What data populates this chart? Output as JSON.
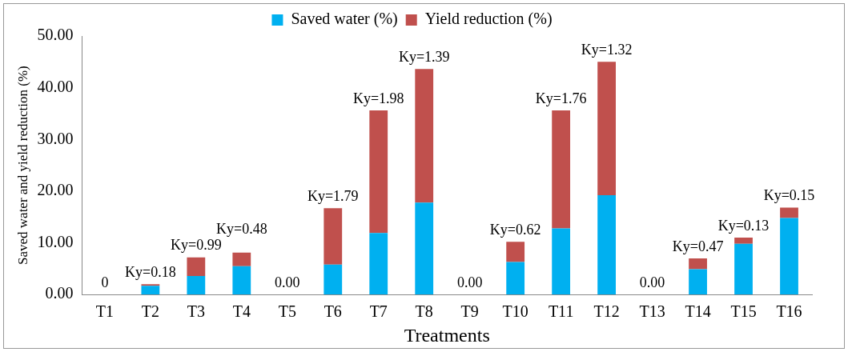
{
  "chart_data": {
    "type": "bar",
    "stacked": true,
    "xlabel": "Treatments",
    "ylabel": "Saved water and yield reduction (%)",
    "categories": [
      "T1",
      "T2",
      "T3",
      "T4",
      "T5",
      "T6",
      "T7",
      "T8",
      "T9",
      "T10",
      "T11",
      "T12",
      "T13",
      "T14",
      "T15",
      "T16"
    ],
    "series": [
      {
        "name": "Saved water (%)",
        "color": "#00b0f0",
        "values": [
          0,
          1.7,
          3.6,
          5.5,
          0,
          5.8,
          11.9,
          17.8,
          0,
          6.3,
          12.8,
          19.2,
          0,
          4.9,
          9.8,
          14.8
        ]
      },
      {
        "name": "Yield reduction (%)",
        "color": "#c0504d",
        "values": [
          0,
          0.3,
          3.6,
          2.6,
          0,
          10.9,
          23.7,
          25.8,
          0,
          3.9,
          22.8,
          25.8,
          0,
          2.1,
          1.2,
          2.0
        ]
      }
    ],
    "annotations": [
      {
        "text": "0",
        "x": "T1",
        "y": 0
      },
      {
        "text": "Ky=0.18",
        "x": "T2",
        "y": 2.0
      },
      {
        "text": "Ky=0.99",
        "x": "T3",
        "y": 7.2
      },
      {
        "text": "Ky=0.48",
        "x": "T4",
        "y": 8.1
      },
      {
        "text": "0.00",
        "x": "T5",
        "y": 0
      },
      {
        "text": "Ky=1.79",
        "x": "T6",
        "y": 16.7
      },
      {
        "text": "Ky=1.98",
        "x": "T7",
        "y": 35.6
      },
      {
        "text": "Ky=1.39",
        "x": "T8",
        "y": 43.6
      },
      {
        "text": "0.00",
        "x": "T9",
        "y": 0
      },
      {
        "text": "Ky=0.62",
        "x": "T10",
        "y": 10.2
      },
      {
        "text": "Ky=1.76",
        "x": "T11",
        "y": 35.6
      },
      {
        "text": "Ky=1.32",
        "x": "T12",
        "y": 45.0
      },
      {
        "text": "0.00",
        "x": "T13",
        "y": 0
      },
      {
        "text": "Ky=0.47",
        "x": "T14",
        "y": 7.0
      },
      {
        "text": "Ky=0.13",
        "x": "T15",
        "y": 11.0
      },
      {
        "text": "Ky=0.15",
        "x": "T16",
        "y": 16.8
      }
    ],
    "ylim": [
      0,
      50
    ],
    "yticks": [
      {
        "value": 0,
        "label": "0.00"
      },
      {
        "value": 10,
        "label": "10.00"
      },
      {
        "value": 20,
        "label": "20.00"
      },
      {
        "value": 30,
        "label": "30.00"
      },
      {
        "value": 40,
        "label": "40.00"
      },
      {
        "value": 50,
        "label": "50.00"
      }
    ],
    "grid": false,
    "legend": "top"
  }
}
